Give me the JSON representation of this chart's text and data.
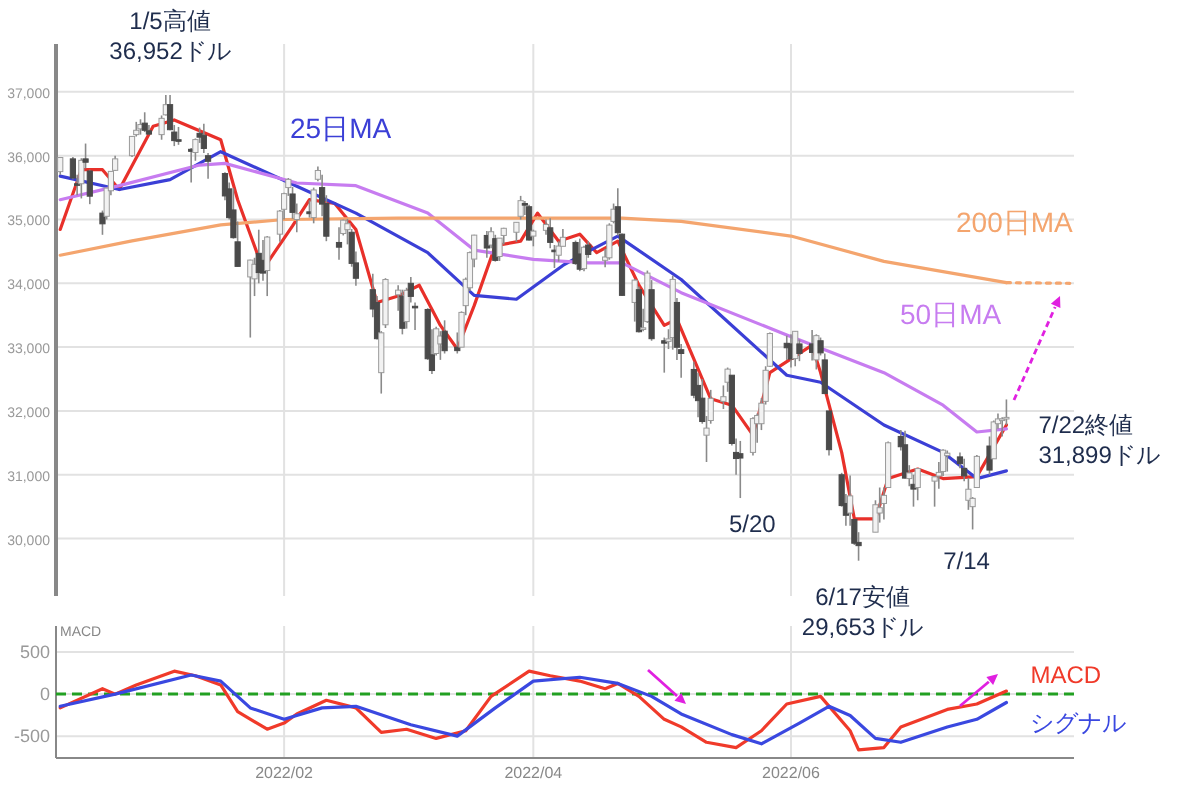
{
  "chart_data": [
    {
      "type": "candlestick",
      "xlim": [
        "2021-12-09",
        "2022-08-07"
      ],
      "ylim": [
        29100,
        37750
      ],
      "yticks": [
        {
          "value": 30000,
          "label": "30,000"
        },
        {
          "value": 31000,
          "label": "31,000"
        },
        {
          "value": 32000,
          "label": "32,000"
        },
        {
          "value": 33000,
          "label": "33,000"
        },
        {
          "value": 34000,
          "label": "34,000"
        },
        {
          "value": 35000,
          "label": "35,000"
        },
        {
          "value": 36000,
          "label": "36,000"
        },
        {
          "value": 37000,
          "label": "37,000"
        }
      ],
      "xticks": [
        {
          "value": "2022-02-01",
          "label": null
        },
        {
          "value": "2022-04-01",
          "label": null
        },
        {
          "value": "2022-06-01",
          "label": null
        }
      ],
      "tick_labels": "y",
      "grid": true,
      "x": [
        "2021-12-10",
        "2021-12-13",
        "2021-12-14",
        "2021-12-15",
        "2021-12-16",
        "2021-12-17",
        "2021-12-20",
        "2021-12-21",
        "2021-12-22",
        "2021-12-23",
        "2021-12-27",
        "2021-12-28",
        "2021-12-29",
        "2021-12-30",
        "2021-12-31",
        "2022-01-03",
        "2022-01-04",
        "2022-01-05",
        "2022-01-06",
        "2022-01-07",
        "2022-01-10",
        "2022-01-11",
        "2022-01-12",
        "2022-01-13",
        "2022-01-14",
        "2022-01-18",
        "2022-01-19",
        "2022-01-20",
        "2022-01-21",
        "2022-01-24",
        "2022-01-25",
        "2022-01-26",
        "2022-01-27",
        "2022-01-28",
        "2022-01-31",
        "2022-02-01",
        "2022-02-02",
        "2022-02-03",
        "2022-02-04",
        "2022-02-07",
        "2022-02-08",
        "2022-02-09",
        "2022-02-10",
        "2022-02-11",
        "2022-02-14",
        "2022-02-15",
        "2022-02-16",
        "2022-02-17",
        "2022-02-18",
        "2022-02-22",
        "2022-02-23",
        "2022-02-24",
        "2022-02-25",
        "2022-02-28",
        "2022-03-01",
        "2022-03-02",
        "2022-03-03",
        "2022-03-04",
        "2022-03-07",
        "2022-03-08",
        "2022-03-09",
        "2022-03-10",
        "2022-03-11",
        "2022-03-14",
        "2022-03-15",
        "2022-03-16",
        "2022-03-17",
        "2022-03-18",
        "2022-03-21",
        "2022-03-22",
        "2022-03-23",
        "2022-03-24",
        "2022-03-25",
        "2022-03-28",
        "2022-03-29",
        "2022-03-30",
        "2022-03-31",
        "2022-04-01",
        "2022-04-04",
        "2022-04-05",
        "2022-04-06",
        "2022-04-07",
        "2022-04-08",
        "2022-04-11",
        "2022-04-12",
        "2022-04-13",
        "2022-04-14",
        "2022-04-18",
        "2022-04-19",
        "2022-04-20",
        "2022-04-21",
        "2022-04-22",
        "2022-04-25",
        "2022-04-26",
        "2022-04-27",
        "2022-04-28",
        "2022-04-29",
        "2022-05-02",
        "2022-05-03",
        "2022-05-04",
        "2022-05-05",
        "2022-05-06",
        "2022-05-09",
        "2022-05-10",
        "2022-05-11",
        "2022-05-12",
        "2022-05-13",
        "2022-05-16",
        "2022-05-17",
        "2022-05-18",
        "2022-05-19",
        "2022-05-20",
        "2022-05-23",
        "2022-05-24",
        "2022-05-25",
        "2022-05-26",
        "2022-05-27",
        "2022-05-31",
        "2022-06-01",
        "2022-06-02",
        "2022-06-03",
        "2022-06-06",
        "2022-06-07",
        "2022-06-08",
        "2022-06-09",
        "2022-06-10",
        "2022-06-13",
        "2022-06-14",
        "2022-06-15",
        "2022-06-16",
        "2022-06-17",
        "2022-06-21",
        "2022-06-22",
        "2022-06-23",
        "2022-06-24",
        "2022-06-27",
        "2022-06-28",
        "2022-06-29",
        "2022-06-30",
        "2022-07-01",
        "2022-07-05",
        "2022-07-06",
        "2022-07-07",
        "2022-07-08",
        "2022-07-11",
        "2022-07-12",
        "2022-07-13",
        "2022-07-14",
        "2022-07-15",
        "2022-07-18",
        "2022-07-19",
        "2022-07-20",
        "2022-07-21",
        "2022-07-22"
      ],
      "ohlc": [
        [
          35750,
          35971,
          35700,
          35971
        ],
        [
          35950,
          35980,
          35630,
          35650
        ],
        [
          35560,
          35700,
          35380,
          35544
        ],
        [
          35560,
          35960,
          35330,
          35927
        ],
        [
          35950,
          36190,
          35800,
          35897
        ],
        [
          35760,
          35780,
          35240,
          35365
        ],
        [
          35100,
          35140,
          34760,
          34932
        ],
        [
          35050,
          35500,
          35000,
          35492
        ],
        [
          35450,
          35760,
          35380,
          35754
        ],
        [
          35770,
          36000,
          35760,
          35950
        ],
        [
          36000,
          36310,
          35980,
          36302
        ],
        [
          36330,
          36530,
          36300,
          36398
        ],
        [
          36420,
          36570,
          36330,
          36488
        ],
        [
          36510,
          36680,
          36370,
          36398
        ],
        [
          36390,
          36480,
          36330,
          36338
        ],
        [
          36330,
          36630,
          36250,
          36585
        ],
        [
          36640,
          36950,
          36630,
          36799
        ],
        [
          36800,
          36952,
          36400,
          36407
        ],
        [
          36370,
          36480,
          36150,
          36236
        ],
        [
          36250,
          36450,
          36170,
          36231
        ],
        [
          36100,
          36120,
          35580,
          36068
        ],
        [
          36050,
          36270,
          35920,
          36252
        ],
        [
          36350,
          36440,
          36200,
          36290
        ],
        [
          36320,
          36500,
          36040,
          36113
        ],
        [
          36000,
          36040,
          35640,
          35912
        ],
        [
          35720,
          35740,
          35300,
          35369
        ],
        [
          35480,
          35580,
          35000,
          35029
        ],
        [
          35150,
          35490,
          34700,
          34715
        ],
        [
          34650,
          34970,
          34260,
          34265
        ],
        [
          34100,
          34370,
          33150,
          34364
        ],
        [
          34070,
          34400,
          33800,
          34298
        ],
        [
          34470,
          34840,
          34000,
          34168
        ],
        [
          34360,
          34680,
          34040,
          34160
        ],
        [
          34200,
          34740,
          33800,
          34725
        ],
        [
          34770,
          35150,
          34650,
          35132
        ],
        [
          35160,
          35420,
          35000,
          35405
        ],
        [
          35500,
          35650,
          35370,
          35629
        ],
        [
          35400,
          35510,
          35010,
          35111
        ],
        [
          35000,
          35250,
          34800,
          35090
        ],
        [
          35120,
          35300,
          35030,
          35091
        ],
        [
          35030,
          35500,
          34940,
          35463
        ],
        [
          35630,
          35830,
          35600,
          35768
        ],
        [
          35500,
          35700,
          35050,
          35241
        ],
        [
          35250,
          35380,
          34660,
          34738
        ],
        [
          34640,
          34880,
          34370,
          34566
        ],
        [
          34780,
          35000,
          34750,
          34989
        ],
        [
          34840,
          35010,
          34610,
          34934
        ],
        [
          34800,
          34850,
          34260,
          34312
        ],
        [
          34320,
          34500,
          33960,
          34079
        ],
        [
          33900,
          34150,
          33470,
          33597
        ],
        [
          33700,
          33800,
          33120,
          33132
        ],
        [
          32600,
          33250,
          32272,
          33224
        ],
        [
          33350,
          34080,
          33300,
          34059
        ],
        [
          33820,
          33970,
          33570,
          33893
        ],
        [
          33800,
          33900,
          33200,
          33295
        ],
        [
          33400,
          33930,
          33290,
          33891
        ],
        [
          34000,
          34100,
          33700,
          33795
        ],
        [
          33640,
          33700,
          33270,
          33615
        ],
        [
          33590,
          33610,
          32800,
          32818
        ],
        [
          32880,
          33280,
          32580,
          32633
        ],
        [
          32900,
          33320,
          32870,
          33287
        ],
        [
          33050,
          33250,
          32800,
          33174
        ],
        [
          33250,
          33420,
          32900,
          32944
        ],
        [
          33000,
          33230,
          32900,
          32945
        ],
        [
          33000,
          33560,
          33000,
          33544
        ],
        [
          33650,
          34090,
          33500,
          34063
        ],
        [
          33930,
          34500,
          33880,
          34481
        ],
        [
          34380,
          34760,
          34250,
          34755
        ],
        [
          34750,
          34820,
          34400,
          34553
        ],
        [
          34600,
          34880,
          34550,
          34808
        ],
        [
          34700,
          34760,
          34340,
          34359
        ],
        [
          34420,
          34710,
          34350,
          34708
        ],
        [
          34750,
          34870,
          34610,
          34862
        ],
        [
          34800,
          34960,
          34650,
          34956
        ],
        [
          35050,
          35370,
          35000,
          35295
        ],
        [
          35250,
          35290,
          35070,
          35229
        ],
        [
          35200,
          35230,
          34670,
          34678
        ],
        [
          34740,
          34840,
          34580,
          34818
        ],
        [
          34830,
          35000,
          34760,
          34922
        ],
        [
          34870,
          35020,
          34550,
          34641
        ],
        [
          34520,
          34600,
          34240,
          34497
        ],
        [
          34440,
          34660,
          34340,
          34584
        ],
        [
          34580,
          34850,
          34580,
          34721
        ],
        [
          34640,
          34670,
          34290,
          34309
        ],
        [
          34460,
          34700,
          34190,
          34221
        ],
        [
          34230,
          34590,
          34190,
          34565
        ],
        [
          34600,
          34660,
          34400,
          34452
        ],
        [
          34360,
          34540,
          34250,
          34412
        ],
        [
          34400,
          34940,
          34370,
          34912
        ],
        [
          34970,
          35250,
          34940,
          35161
        ],
        [
          35200,
          35490,
          34750,
          34793
        ],
        [
          34770,
          34780,
          33800,
          33811
        ],
        [
          33700,
          34070,
          33400,
          34050
        ],
        [
          33900,
          33950,
          33230,
          33241
        ],
        [
          33300,
          33600,
          33250,
          33302
        ],
        [
          33400,
          34200,
          33380,
          34160
        ],
        [
          33900,
          34050,
          33100,
          33132
        ],
        [
          33100,
          33150,
          32600,
          33062
        ],
        [
          33090,
          33280,
          32970,
          33129
        ],
        [
          33150,
          34120,
          32960,
          34061
        ],
        [
          33700,
          33770,
          32800,
          32998
        ],
        [
          32960,
          33050,
          32520,
          32900
        ],
        [
          32650,
          32770,
          32200,
          32246
        ],
        [
          32400,
          32600,
          31900,
          32161
        ],
        [
          32200,
          32500,
          31800,
          31834
        ],
        [
          31620,
          31920,
          31200,
          31731
        ],
        [
          31850,
          32330,
          31800,
          32197
        ],
        [
          32150,
          32400,
          32030,
          32223
        ],
        [
          32450,
          32680,
          32300,
          32655
        ],
        [
          32560,
          32560,
          31460,
          31490
        ],
        [
          31350,
          31570,
          31000,
          31254
        ],
        [
          31330,
          31530,
          30635,
          31262
        ],
        [
          31350,
          31900,
          31300,
          31880
        ],
        [
          31800,
          31960,
          31500,
          31929
        ],
        [
          31800,
          32200,
          31700,
          32121
        ],
        [
          32150,
          32700,
          32100,
          32637
        ],
        [
          32700,
          33230,
          32690,
          33213
        ],
        [
          33060,
          33180,
          32800,
          32990
        ],
        [
          33050,
          33200,
          32680,
          32813
        ],
        [
          32820,
          33250,
          32700,
          33248
        ],
        [
          33050,
          33120,
          32780,
          32900
        ],
        [
          33050,
          33270,
          32790,
          32916
        ],
        [
          32800,
          33200,
          32650,
          33180
        ],
        [
          33100,
          33150,
          32870,
          32910
        ],
        [
          32800,
          32900,
          32270,
          32272
        ],
        [
          32000,
          32000,
          31300,
          31393
        ],
        [
          31000,
          31030,
          30500,
          30517
        ],
        [
          30550,
          30700,
          30200,
          30365
        ],
        [
          30400,
          30990,
          30200,
          30669
        ],
        [
          30300,
          30300,
          29900,
          29927
        ],
        [
          29940,
          30100,
          29653,
          29889
        ],
        [
          30100,
          30600,
          30100,
          30530
        ],
        [
          30400,
          30800,
          30250,
          30484
        ],
        [
          30550,
          30800,
          30300,
          30677
        ],
        [
          30800,
          31520,
          30800,
          31501
        ],
        [
          31600,
          31700,
          31380,
          31439
        ],
        [
          31470,
          31690,
          30940,
          30947
        ],
        [
          30940,
          31150,
          30820,
          31029
        ],
        [
          30850,
          31000,
          30500,
          30775
        ],
        [
          30800,
          31100,
          30600,
          31097
        ],
        [
          30900,
          30980,
          30500,
          30968
        ],
        [
          30980,
          31200,
          30780,
          31037
        ],
        [
          31050,
          31400,
          30980,
          31385
        ],
        [
          31300,
          31380,
          31050,
          31338
        ],
        [
          31280,
          31350,
          31100,
          31174
        ],
        [
          31100,
          31250,
          30900,
          30982
        ],
        [
          30600,
          30950,
          30450,
          30773
        ],
        [
          30500,
          30650,
          30143,
          30630
        ],
        [
          30800,
          31310,
          30800,
          31288
        ],
        [
          31450,
          31600,
          31000,
          31073
        ],
        [
          31250,
          31850,
          31250,
          31828
        ],
        [
          31800,
          31960,
          31720,
          31875
        ],
        [
          31850,
          31900,
          31600,
          31874
        ],
        [
          31880,
          32180,
          31780,
          31899
        ]
      ],
      "series": [
        {
          "type": "line",
          "color": "#e8302a",
          "x": [
            "2021-12-10",
            "2021-12-15",
            "2021-12-20",
            "2021-12-24",
            "2022-01-01",
            "2022-01-06",
            "2022-01-17",
            "2022-01-21",
            "2022-01-27",
            "2022-02-03",
            "2022-02-07",
            "2022-02-13",
            "2022-02-18",
            "2022-02-23",
            "2022-02-28",
            "2022-03-05",
            "2022-03-10",
            "2022-03-14",
            "2022-03-18",
            "2022-03-23",
            "2022-03-29",
            "2022-04-02",
            "2022-04-07",
            "2022-04-12",
            "2022-04-16",
            "2022-04-21",
            "2022-04-26",
            "2022-05-02",
            "2022-05-05",
            "2022-05-13",
            "2022-05-18",
            "2022-05-23",
            "2022-05-27",
            "2022-06-06",
            "2022-06-08",
            "2022-06-13",
            "2022-06-16",
            "2022-06-21",
            "2022-06-24",
            "2022-07-01",
            "2022-07-07",
            "2022-07-15",
            "2022-07-22"
          ],
          "values": [
            34844,
            35780,
            35780,
            35470,
            36460,
            36560,
            36250,
            35310,
            34220,
            34900,
            35310,
            35250,
            34844,
            33700,
            33800,
            33970,
            33340,
            32970,
            33650,
            34590,
            34660,
            35100,
            34660,
            34770,
            34480,
            34660,
            33970,
            33340,
            33440,
            32190,
            32090,
            31620,
            32600,
            33030,
            32600,
            31350,
            30310,
            30310,
            30940,
            31090,
            30940,
            30970,
            31780
          ]
        },
        {
          "type": "line",
          "name": "25日MA",
          "color": "#3b3fd6",
          "x": [
            "2021-12-10",
            "2021-12-24",
            "2022-01-05",
            "2022-01-17",
            "2022-02-04",
            "2022-02-18",
            "2022-03-07",
            "2022-03-18",
            "2022-03-28",
            "2022-04-08",
            "2022-04-14",
            "2022-04-21",
            "2022-05-06",
            "2022-05-31",
            "2022-06-08",
            "2022-06-23",
            "2022-07-07",
            "2022-07-15",
            "2022-07-22"
          ],
          "values": [
            35680,
            35470,
            35625,
            36062,
            35520,
            35100,
            34480,
            33810,
            33750,
            34280,
            34500,
            34740,
            34060,
            32560,
            32450,
            31780,
            31350,
            30940,
            31060
          ]
        },
        {
          "type": "line",
          "name": "50日MA",
          "color": "#c77cf0",
          "x": [
            "2021-12-10",
            "2021-12-24",
            "2022-01-12",
            "2022-01-18",
            "2022-02-04",
            "2022-02-18",
            "2022-03-07",
            "2022-03-18",
            "2022-04-01",
            "2022-04-14",
            "2022-04-22",
            "2022-05-06",
            "2022-05-31",
            "2022-06-23",
            "2022-07-07",
            "2022-07-15",
            "2022-07-22"
          ],
          "values": [
            35310,
            35530,
            35853,
            35880,
            35572,
            35530,
            35100,
            34520,
            34375,
            34320,
            34320,
            33853,
            33190,
            32600,
            32090,
            31670,
            31720
          ]
        },
        {
          "type": "line",
          "name": "200日MA",
          "color": "#f4a56e",
          "x": [
            "2021-12-10",
            "2021-12-27",
            "2022-01-17",
            "2022-02-01",
            "2022-02-28",
            "2022-04-14",
            "2022-04-22",
            "2022-05-06",
            "2022-06-01",
            "2022-06-23",
            "2022-07-22"
          ],
          "values": [
            34440,
            34665,
            34916,
            35000,
            35020,
            35020,
            35020,
            34970,
            34740,
            34344,
            34010
          ]
        },
        {
          "type": "line",
          "line_style": "dotted",
          "color": "#f4a56e",
          "x": [
            "2022-07-22",
            "2022-08-06"
          ],
          "values": [
            34010,
            34000
          ]
        }
      ],
      "annotations": [
        {
          "text": "1/5高値 36,952ドル",
          "x": "2022-01-05",
          "y": 36952
        },
        {
          "text": "5/20",
          "x": "2022-05-20",
          "y": 30635
        },
        {
          "text": "6/17安値 29,653ドル",
          "x": "2022-06-17",
          "y": 29653
        },
        {
          "text": "7/14",
          "x": "2022-07-14",
          "y": 30143
        },
        {
          "text": "7/22終値 31,899ドル",
          "x": "2022-07-22",
          "y": 31899
        }
      ]
    },
    {
      "type": "line",
      "title": "MACD",
      "xlim": [
        "2021-12-09",
        "2022-08-07"
      ],
      "ylim": [
        -760,
        810
      ],
      "yticks": [
        500,
        0,
        -500
      ],
      "xticks": [
        {
          "value": "2022-02-01",
          "label": "2022/02"
        },
        {
          "value": "2022-04-01",
          "label": "2022/04"
        },
        {
          "value": "2022-06-01",
          "label": "2022/06"
        }
      ],
      "grid": true,
      "ref_lines": [
        {
          "axis": "y",
          "value": 0,
          "color": "#22a022",
          "line_style": "dashed"
        }
      ],
      "series": [
        {
          "name": "MACD",
          "color": "#f03a2a",
          "x": [
            "2021-12-10",
            "2021-12-20",
            "2021-12-23",
            "2021-12-28",
            "2022-01-06",
            "2022-01-11",
            "2022-01-17",
            "2022-01-21",
            "2022-01-28",
            "2022-02-01",
            "2022-02-04",
            "2022-02-11",
            "2022-02-18",
            "2022-02-24",
            "2022-03-02",
            "2022-03-09",
            "2022-03-16",
            "2022-03-22",
            "2022-03-31",
            "2022-04-05",
            "2022-04-12",
            "2022-04-18",
            "2022-04-21",
            "2022-04-26",
            "2022-05-02",
            "2022-05-06",
            "2022-05-12",
            "2022-05-19",
            "2022-05-25",
            "2022-05-31",
            "2022-06-08",
            "2022-06-15",
            "2022-06-17",
            "2022-06-23",
            "2022-06-27",
            "2022-07-08",
            "2022-07-15",
            "2022-07-22"
          ],
          "values": [
            -164,
            64,
            0,
            109,
            273,
            218,
            109,
            -209,
            -418,
            -345,
            -236,
            -73,
            -164,
            -455,
            -418,
            -527,
            -436,
            -27,
            273,
            218,
            155,
            64,
            127,
            -27,
            -300,
            -390,
            -573,
            -636,
            -436,
            -118,
            -27,
            -436,
            -664,
            -636,
            -391,
            -182,
            -118,
            36
          ]
        },
        {
          "name": "シグナル",
          "color": "#3a48e0",
          "x": [
            "2021-12-10",
            "2021-12-23",
            "2022-01-10",
            "2022-01-17",
            "2022-01-24",
            "2022-02-01",
            "2022-02-10",
            "2022-02-18",
            "2022-03-03",
            "2022-03-14",
            "2022-03-23",
            "2022-04-01",
            "2022-04-12",
            "2022-04-21",
            "2022-04-29",
            "2022-05-06",
            "2022-05-18",
            "2022-05-25",
            "2022-06-03",
            "2022-06-10",
            "2022-06-15",
            "2022-06-21",
            "2022-06-27",
            "2022-07-08",
            "2022-07-15",
            "2022-07-22"
          ],
          "values": [
            -145,
            0,
            227,
            155,
            -164,
            -300,
            -164,
            -145,
            -364,
            -500,
            -164,
            155,
            200,
            127,
            -27,
            -236,
            -482,
            -591,
            -345,
            -145,
            -254,
            -527,
            -573,
            -391,
            -300,
            -100
          ]
        }
      ]
    }
  ]
}
